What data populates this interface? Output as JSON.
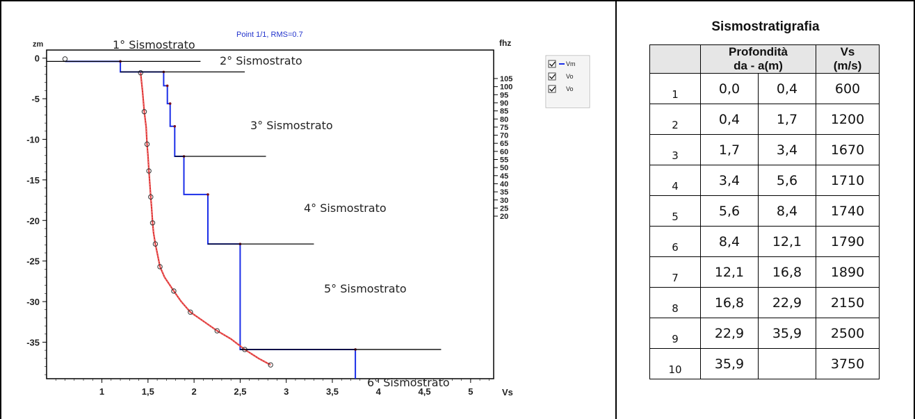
{
  "chart_data": {
    "type": "line",
    "top_label": "Point 1/1, RMS=0.7",
    "left_axis_label": "zm",
    "right_axis_label": "fhz",
    "xlabel": "Vs",
    "x_ticks": [
      "1",
      "1,5",
      "2",
      "2,5",
      "3",
      "3,5",
      "4",
      "4,5",
      "5"
    ],
    "x_tick_values": [
      1,
      1.5,
      2,
      2.5,
      3,
      3.5,
      4,
      4.5,
      5
    ],
    "y_ticks": [
      "0",
      "-5",
      "-10",
      "-15",
      "-20",
      "-25",
      "-30",
      "-35"
    ],
    "y_tick_values": [
      0,
      -5,
      -10,
      -15,
      -20,
      -25,
      -30,
      -35
    ],
    "right_ticks": [
      "105",
      "100",
      "95",
      "90",
      "85",
      "80",
      "75",
      "70",
      "65",
      "60",
      "55",
      "50",
      "45",
      "40",
      "35",
      "30",
      "25",
      "20"
    ],
    "xlim": [
      0.4,
      5.25
    ],
    "ylim": [
      -39.5,
      1
    ],
    "legend": [
      "Vm",
      "Vo",
      "Vo"
    ],
    "colors": {
      "step": "#1a2ee8",
      "curve": "#e03030",
      "marker": "#333333",
      "label_line": "#000000",
      "blue_text": "#2233cc"
    },
    "series": [
      {
        "name": "Vm",
        "style": "step",
        "points": [
          [
            0.6,
            -0.4
          ],
          [
            1.2,
            -0.4
          ],
          [
            1.2,
            -1.7
          ],
          [
            1.67,
            -1.7
          ],
          [
            1.67,
            -3.4
          ],
          [
            1.71,
            -3.4
          ],
          [
            1.71,
            -5.6
          ],
          [
            1.74,
            -5.6
          ],
          [
            1.74,
            -8.4
          ],
          [
            1.79,
            -8.4
          ],
          [
            1.79,
            -12.1
          ],
          [
            1.89,
            -12.1
          ],
          [
            1.89,
            -16.8
          ],
          [
            2.15,
            -16.8
          ],
          [
            2.15,
            -22.9
          ],
          [
            2.5,
            -22.9
          ],
          [
            2.5,
            -35.9
          ],
          [
            3.75,
            -35.9
          ],
          [
            3.75,
            -39.5
          ]
        ]
      },
      {
        "name": "Vo",
        "style": "curve",
        "points": [
          [
            1.42,
            -1.8
          ],
          [
            1.44,
            -4
          ],
          [
            1.46,
            -6.6
          ],
          [
            1.48,
            -8.5
          ],
          [
            1.49,
            -10.6
          ],
          [
            1.5,
            -12
          ],
          [
            1.51,
            -13.9
          ],
          [
            1.52,
            -15.5
          ],
          [
            1.53,
            -17.1
          ],
          [
            1.54,
            -18.5
          ],
          [
            1.55,
            -20.3
          ],
          [
            1.56,
            -21.5
          ],
          [
            1.58,
            -22.9
          ],
          [
            1.6,
            -24
          ],
          [
            1.63,
            -25.7
          ],
          [
            1.68,
            -27
          ],
          [
            1.78,
            -28.7
          ],
          [
            1.86,
            -30
          ],
          [
            1.96,
            -31.3
          ],
          [
            2.1,
            -32.4
          ],
          [
            2.25,
            -33.6
          ],
          [
            2.4,
            -34.6
          ],
          [
            2.55,
            -35.9
          ],
          [
            2.7,
            -37
          ],
          [
            2.83,
            -37.8
          ]
        ]
      },
      {
        "name": "Vo",
        "style": "markers",
        "points": [
          [
            0.6,
            -0.1
          ],
          [
            1.42,
            -1.8
          ],
          [
            1.46,
            -6.6
          ],
          [
            1.49,
            -10.6
          ],
          [
            1.51,
            -13.9
          ],
          [
            1.53,
            -17.1
          ],
          [
            1.55,
            -20.3
          ],
          [
            1.58,
            -22.9
          ],
          [
            1.63,
            -25.7
          ],
          [
            1.78,
            -28.7
          ],
          [
            1.96,
            -31.3
          ],
          [
            2.25,
            -33.6
          ],
          [
            2.55,
            -35.9
          ],
          [
            2.83,
            -37.8
          ]
        ]
      }
    ],
    "annotations": [
      {
        "text": "1° Sismostrato",
        "line_x": [
          0.4,
          2.07
        ],
        "line_y": -0.4
      },
      {
        "text": "2° Sismostrato",
        "line_x": [
          1.2,
          2.55
        ],
        "line_y": -1.7
      },
      {
        "text": "3° Sismostrato",
        "line_x": [
          1.79,
          2.78
        ],
        "line_y": -12.1
      },
      {
        "text": "4° Sismostrato",
        "line_x": [
          2.15,
          3.3
        ],
        "line_y": -22.9
      },
      {
        "text": "5° Sismostrato",
        "line_x": null,
        "line_y": null
      },
      {
        "text": "6° Sismostrato",
        "line_x": [
          2.5,
          4.68
        ],
        "line_y": -35.9
      }
    ]
  },
  "table": {
    "title": "Sismostratigrafia",
    "headers": {
      "depth_line1": "Profondità",
      "depth_line2": "da - a(m)",
      "vs_line1": "Vs",
      "vs_line2": "(m/s)"
    },
    "rows": [
      [
        "1",
        "0,0",
        "0,4",
        "600"
      ],
      [
        "2",
        "0,4",
        "1,7",
        "1200"
      ],
      [
        "3",
        "1,7",
        "3,4",
        "1670"
      ],
      [
        "4",
        "3,4",
        "5,6",
        "1710"
      ],
      [
        "5",
        "5,6",
        "8,4",
        "1740"
      ],
      [
        "6",
        "8,4",
        "12,1",
        "1790"
      ],
      [
        "7",
        "12,1",
        "16,8",
        "1890"
      ],
      [
        "8",
        "16,8",
        "22,9",
        "2150"
      ],
      [
        "9",
        "22,9",
        "35,9",
        "2500"
      ],
      [
        "10",
        "35,9",
        "",
        "3750"
      ]
    ]
  }
}
